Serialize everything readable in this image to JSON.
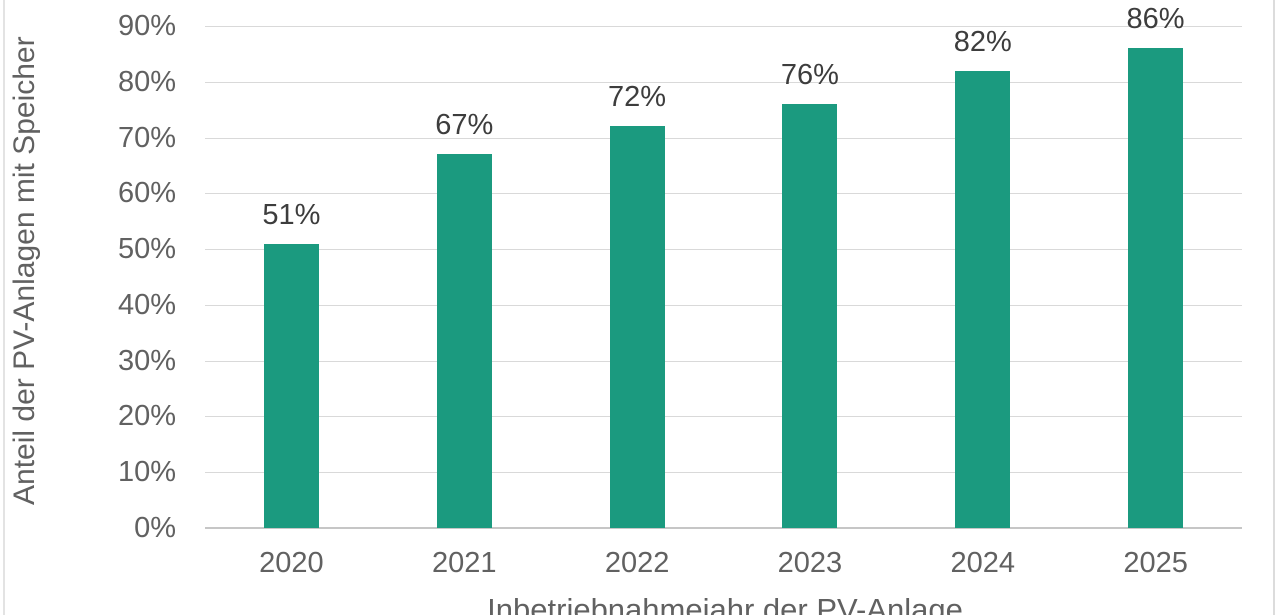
{
  "page": {
    "background": "#ffffff",
    "left_border_color": "#e3e3e3",
    "right_border_color": "#dcdcdc"
  },
  "chart_data": {
    "type": "bar",
    "categories": [
      "2020",
      "2021",
      "2022",
      "2023",
      "2024",
      "2025"
    ],
    "values": [
      51,
      67,
      72,
      76,
      82,
      86
    ],
    "data_labels": [
      "51%",
      "67%",
      "72%",
      "76%",
      "82%",
      "86%"
    ],
    "xlabel": "Inbetriebnahmejahr der PV-Anlage",
    "ylabel": "Anteil der PV-Anlagen mit Speicher",
    "ylim": [
      0,
      90
    ],
    "yticks": [
      0,
      10,
      20,
      30,
      40,
      50,
      60,
      70,
      80,
      90
    ],
    "ytick_labels": [
      "0%",
      "10%",
      "20%",
      "30%",
      "40%",
      "50%",
      "60%",
      "70%",
      "80%",
      "90%"
    ],
    "grid": true,
    "legend": "none",
    "bar_color": "#1b9a7f",
    "gridline_color": "#d9d9d9",
    "baseline_color": "#c6c6c6",
    "axis_text_color": "#616161",
    "data_label_color": "#3d3d3d"
  }
}
